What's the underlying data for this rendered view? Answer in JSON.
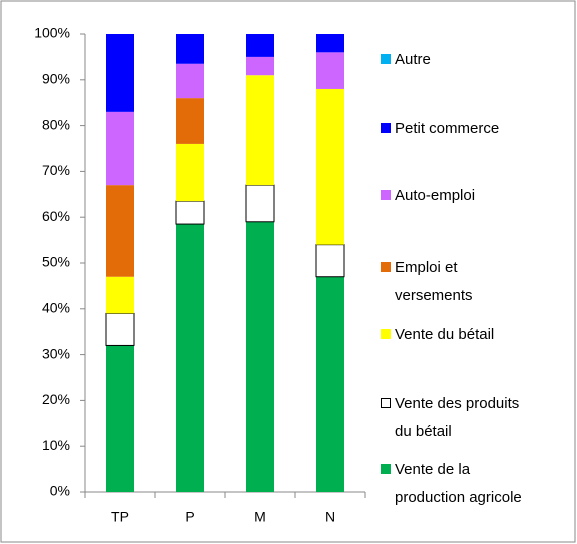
{
  "chart_data": {
    "type": "stacked_bar",
    "categories": [
      "TP",
      "P",
      "M",
      "N"
    ],
    "series": [
      {
        "name": "Vente de la production agricole",
        "color": "#00b050",
        "values": [
          32,
          58.5,
          59,
          47
        ]
      },
      {
        "name": "Vente des produits du bétail",
        "color": "#ffffff",
        "values": [
          7,
          5,
          8,
          7
        ]
      },
      {
        "name": "Vente du bétail",
        "color": "#ffff00",
        "values": [
          8,
          12.5,
          24,
          34
        ]
      },
      {
        "name": "Emploi et versements",
        "color": "#e36c09",
        "values": [
          20,
          10,
          0,
          0
        ]
      },
      {
        "name": "Auto-emploi",
        "color": "#cc66ff",
        "values": [
          16,
          7.5,
          4,
          8
        ]
      },
      {
        "name": "Petit commerce",
        "color": "#0000ff",
        "values": [
          17,
          6.5,
          5,
          4
        ]
      },
      {
        "name": "Autre",
        "color": "#00b0f0",
        "values": [
          0,
          0,
          0,
          0
        ]
      }
    ],
    "ylim": [
      0,
      100
    ],
    "yticks": [
      {
        "value": 0,
        "label": "0%"
      },
      {
        "value": 10,
        "label": "10%"
      },
      {
        "value": 20,
        "label": "20%"
      },
      {
        "value": 30,
        "label": "30%"
      },
      {
        "value": 40,
        "label": "40%"
      },
      {
        "value": 50,
        "label": "50%"
      },
      {
        "value": 60,
        "label": "60%"
      },
      {
        "value": 70,
        "label": "70%"
      },
      {
        "value": 80,
        "label": "80%"
      },
      {
        "value": 90,
        "label": "90%"
      },
      {
        "value": 100,
        "label": "100%"
      }
    ],
    "legend": "right"
  }
}
